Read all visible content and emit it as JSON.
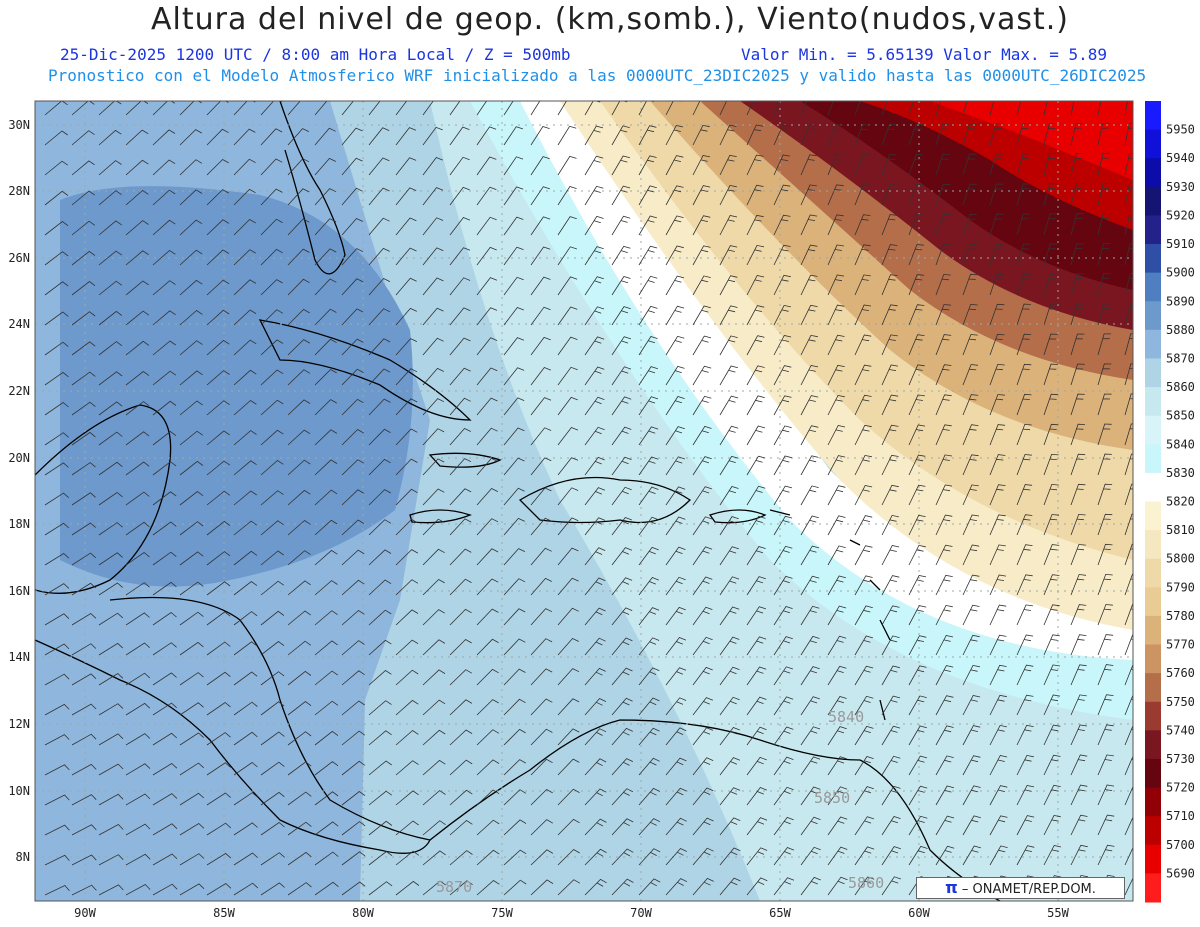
{
  "header": {
    "title": "Altura del nivel de geop. (km,somb.), Viento(nudos,vast.)",
    "line1_left": "25-Dic-2025   1200 UTC / 8:00 am Hora Local / Z = 500mb",
    "line1_right": "Valor Min. = 5.65139  Valor Max. = 5.89",
    "line2": "Pronostico con el Modelo Atmosferico WRF inicializado a las 0000UTC_23DIC2025 y valido hasta las  0000UTC_26DIC2025"
  },
  "axes": {
    "lat_labels": [
      "30N",
      "28N",
      "26N",
      "24N",
      "22N",
      "20N",
      "18N",
      "16N",
      "14N",
      "12N",
      "10N",
      "8N"
    ],
    "lon_labels": [
      "90W",
      "85W",
      "80W",
      "75W",
      "70W",
      "65W",
      "60W",
      "55W"
    ]
  },
  "colorbar": {
    "labels": [
      "5950",
      "5940",
      "5930",
      "5920",
      "5910",
      "5900",
      "5890",
      "5880",
      "5870",
      "5860",
      "5850",
      "5840",
      "5830",
      "5820",
      "5810",
      "5800",
      "5790",
      "5780",
      "5770",
      "5760",
      "5750",
      "5740",
      "5730",
      "5720",
      "5710",
      "5700",
      "5690"
    ],
    "colors": [
      "#1a1aff",
      "#1010d8",
      "#0c0ca8",
      "#141473",
      "#22228a",
      "#2f4fa6",
      "#4f7fc0",
      "#6d99cc",
      "#8fb6dc",
      "#aed4e6",
      "#c7e8ef",
      "#d9f4f8",
      "#c8f6fa",
      "#ffffff",
      "#fbf2d2",
      "#f5e7c0",
      "#efd9a8",
      "#e8cc94",
      "#dbb27a",
      "#cc9463",
      "#b46e4a",
      "#9a3a30",
      "#7a1620",
      "#650510",
      "#900006",
      "#bc0000",
      "#e80000",
      "#ff1c1c"
    ]
  },
  "contour_labels": [
    "5840",
    "5850",
    "5860",
    "5870"
  ],
  "credit": {
    "symbol": "π",
    "text": "ONAMET/REP.DOM."
  }
}
